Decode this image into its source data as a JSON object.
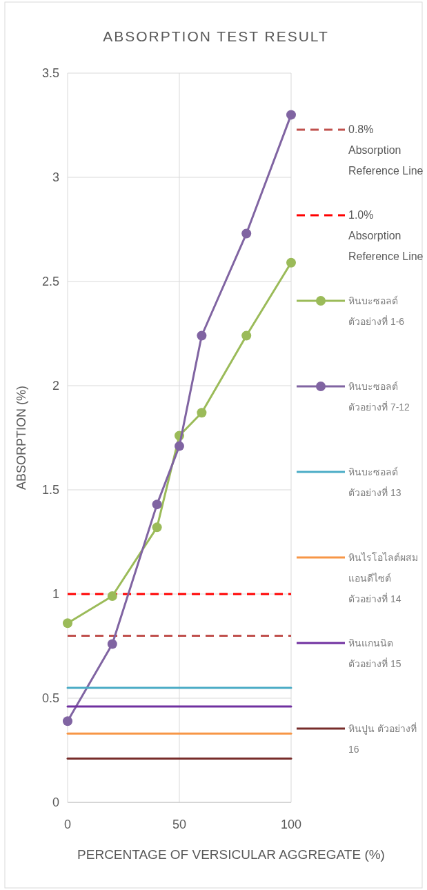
{
  "chart_data": {
    "type": "line",
    "title": "ABSORPTION TEST RESULT",
    "xlabel": "PERCENTAGE OF VERSICULAR AGGREGATE (%)",
    "ylabel": "ABSORPTION (%)",
    "xlim": [
      0,
      100
    ],
    "xticks": [
      0,
      50,
      100
    ],
    "ylim": [
      0,
      3.5
    ],
    "yticks": [
      0,
      0.5,
      1,
      1.5,
      2,
      2.5,
      3,
      3.5
    ],
    "grid": true,
    "legend": "right",
    "series": [
      {
        "name": "0.8% Absorption Reference Line",
        "color": "#c0504d",
        "line_style": "dashed",
        "marker": "none",
        "x": [
          0,
          100
        ],
        "values": [
          0.8,
          0.8
        ]
      },
      {
        "name": "1.0% Absorption Reference Line",
        "color": "#ff0000",
        "line_style": "dashed",
        "marker": "none",
        "x": [
          0,
          100
        ],
        "values": [
          1.0,
          1.0
        ]
      },
      {
        "name": "หินบะซอลต์ ตัวอย่างที่ 1-6",
        "color": "#9bbb59",
        "line_style": "solid",
        "marker": "circle",
        "x": [
          0,
          20,
          40,
          50,
          60,
          80,
          100
        ],
        "values": [
          0.86,
          0.99,
          1.32,
          1.76,
          1.87,
          2.24,
          2.59
        ]
      },
      {
        "name": "หินบะซอลต์ ตัวอย่างที่ 7-12",
        "color": "#8064a2",
        "line_style": "solid",
        "marker": "circle",
        "x": [
          0,
          20,
          40,
          50,
          60,
          80,
          100
        ],
        "values": [
          0.39,
          0.76,
          1.43,
          1.71,
          2.24,
          2.73,
          3.3
        ]
      },
      {
        "name": "หินบะซอลต์ ตัวอย่างที่ 13",
        "color": "#4bacc6",
        "line_style": "solid",
        "marker": "none",
        "x": [
          0,
          100
        ],
        "values": [
          0.55,
          0.55
        ]
      },
      {
        "name": "หินไรโอไลต์ผสมแอนดีไซต์ ตัวอย่างที่ 14",
        "color": "#f79646",
        "line_style": "solid",
        "marker": "none",
        "x": [
          0,
          100
        ],
        "values": [
          0.33,
          0.33
        ]
      },
      {
        "name": "หินแกนนิต ตัวอย่างที่ 15",
        "color": "#7030a0",
        "line_style": "solid",
        "marker": "none",
        "x": [
          0,
          100
        ],
        "values": [
          0.46,
          0.46
        ]
      },
      {
        "name": "หินปูน ตัวอย่างที่ 16",
        "color": "#772c2a",
        "line_style": "solid",
        "marker": "none",
        "x": [
          0,
          100
        ],
        "values": [
          0.21,
          0.21
        ]
      }
    ]
  }
}
